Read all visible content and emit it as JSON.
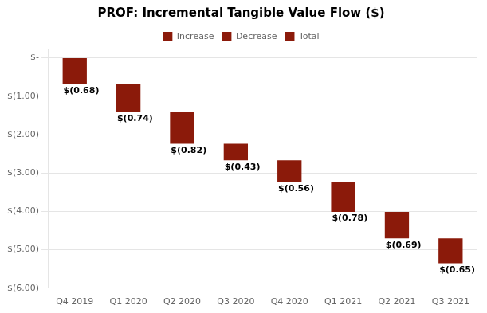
{
  "chart_data": {
    "type": "waterfall",
    "title": "PROF: Incremental Tangible Value Flow ($)",
    "categories": [
      "Q4 2019",
      "Q1 2020",
      "Q2 2020",
      "Q3 2020",
      "Q4 2020",
      "Q1 2021",
      "Q2 2021",
      "Q3 2021"
    ],
    "series": [
      {
        "name": "Increase",
        "color": "#8B1A0A",
        "values": [
          null,
          null,
          null,
          null,
          null,
          null,
          null,
          null
        ]
      },
      {
        "name": "Decrease",
        "color": "#8B1A0A",
        "values": [
          -0.68,
          -0.74,
          -0.82,
          -0.43,
          -0.56,
          -0.78,
          -0.69,
          -0.65
        ],
        "value_labels": [
          "$(0.68)",
          "$(0.74)",
          "$(0.82)",
          "$(0.43)",
          "$(0.56)",
          "$(0.78)",
          "$(0.69)",
          "$(0.65)"
        ]
      },
      {
        "name": "Total",
        "color": "#8B1A0A",
        "values": [
          null,
          null,
          null,
          null,
          null,
          null,
          null,
          null
        ]
      }
    ],
    "ylim": [
      -6.0,
      0.22
    ],
    "yticks": [
      {
        "value": 0,
        "label": "$-"
      },
      {
        "value": -1.0,
        "label": "$(1.00)"
      },
      {
        "value": -2.0,
        "label": "$(2.00)"
      },
      {
        "value": -3.0,
        "label": "$(3.00)"
      },
      {
        "value": -4.0,
        "label": "$(4.00)"
      },
      {
        "value": -5.0,
        "label": "$(5.00)"
      },
      {
        "value": -6.0,
        "label": "$(6.00)"
      }
    ],
    "grid": true,
    "legend": "top",
    "data_labels": true
  }
}
